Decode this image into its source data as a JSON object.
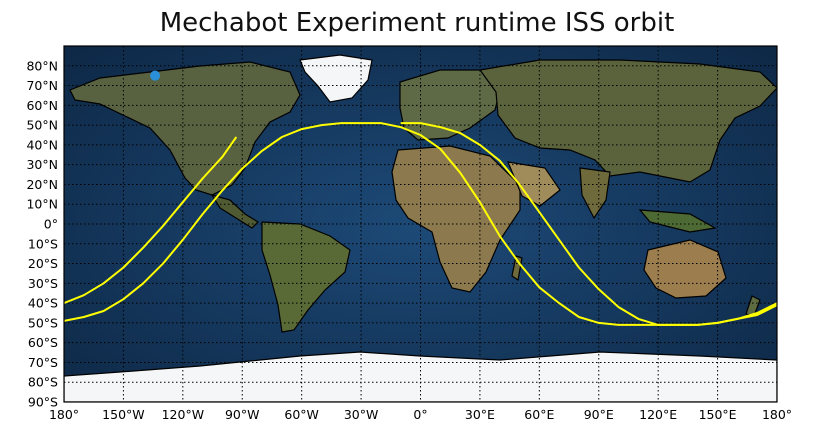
{
  "title": "Mechabot Experiment runtime ISS orbit",
  "axes": {
    "lat_labels": [
      "80°N",
      "70°N",
      "60°N",
      "50°N",
      "40°N",
      "30°N",
      "20°N",
      "10°N",
      "0°",
      "10°S",
      "20°S",
      "30°S",
      "40°S",
      "50°S",
      "60°S",
      "70°S",
      "80°S",
      "90°S"
    ],
    "lat_values": [
      80,
      70,
      60,
      50,
      40,
      30,
      20,
      10,
      0,
      -10,
      -20,
      -30,
      -40,
      -50,
      -60,
      -70,
      -80,
      -90
    ],
    "lon_labels": [
      "180°",
      "150°W",
      "120°W",
      "90°W",
      "60°W",
      "30°W",
      "0°",
      "30°E",
      "60°E",
      "90°E",
      "120°E",
      "150°E",
      "180°"
    ],
    "lon_values": [
      -180,
      -150,
      -120,
      -90,
      -60,
      -30,
      0,
      30,
      60,
      90,
      120,
      150,
      180
    ],
    "lon_range": [
      -180,
      180
    ],
    "lat_range": [
      -90,
      90
    ],
    "grid": "dotted"
  },
  "colors": {
    "orbit": "#ffff00",
    "ocean": "#163a63",
    "land": "#4e5a34",
    "ice": "#f4f6f8",
    "marker": "#2a8fd8"
  },
  "marker": {
    "lon": -134,
    "lat": 75
  },
  "chart_data": {
    "type": "line",
    "title": "Mechabot Experiment runtime ISS orbit",
    "xlim": [
      -180,
      180
    ],
    "ylim": [
      -90,
      90
    ],
    "series": [
      {
        "lon": [
          -180,
          -170,
          -160,
          -150,
          -140,
          -130,
          -120,
          -110,
          -100,
          -93
        ],
        "lat": [
          -40,
          -36,
          -30,
          -22,
          -12,
          -1,
          11,
          23,
          34,
          44
        ]
      },
      {
        "lon": [
          -180,
          -170,
          -160,
          -150,
          -140,
          -130,
          -120,
          -110,
          -100,
          -90,
          -80,
          -70,
          -60,
          -50,
          -40,
          -30,
          -20,
          -10,
          0,
          10,
          20,
          30,
          40,
          50,
          60,
          70,
          80,
          90,
          100,
          110,
          120,
          130,
          140,
          150,
          160,
          170,
          180
        ],
        "lat": [
          -49,
          -47,
          -44,
          -38,
          -30,
          -20,
          -8,
          5,
          17,
          28,
          37,
          44,
          48,
          50,
          51,
          51,
          51,
          49,
          45,
          38,
          26,
          11,
          -6,
          -20,
          -32,
          -40,
          -47,
          -50,
          -51,
          -51,
          -51,
          -51,
          -51,
          -50,
          -48,
          -46,
          -41
        ]
      },
      {
        "lon": [
          -10,
          0,
          10,
          20,
          30,
          40,
          50,
          60,
          70,
          80,
          90,
          100,
          110,
          120,
          130,
          140,
          150,
          160,
          170,
          180
        ],
        "lat": [
          51,
          51,
          49,
          46,
          40,
          32,
          20,
          6,
          -8,
          -22,
          -33,
          -42,
          -48,
          -51,
          -51,
          -51,
          -50,
          -48,
          -45,
          -40
        ]
      }
    ]
  }
}
